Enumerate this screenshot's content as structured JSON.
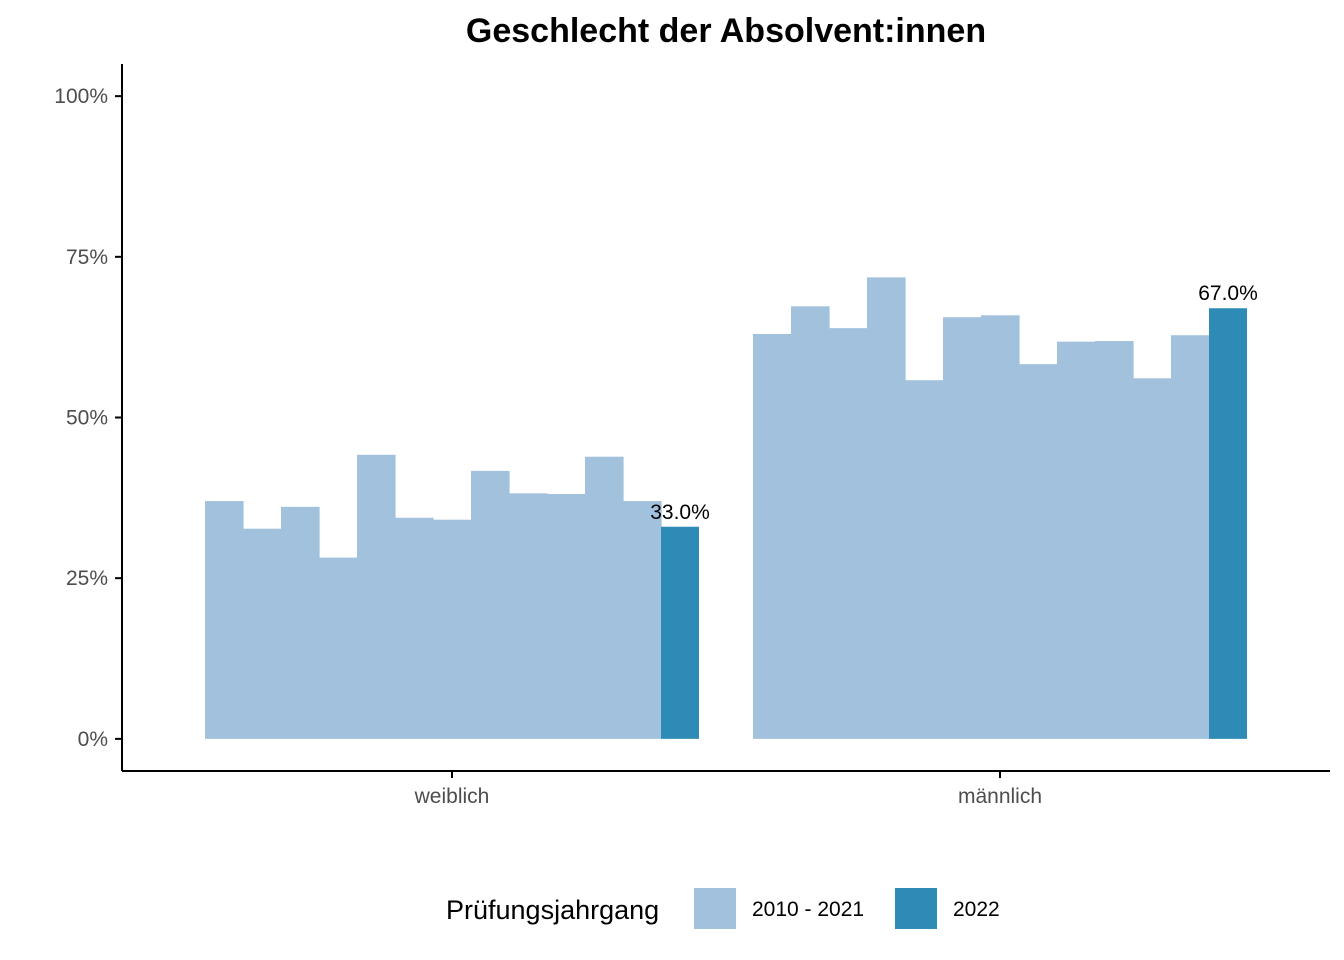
{
  "chart_data": {
    "type": "bar",
    "title": "Geschlecht der Absolvent:innen",
    "xlabel": "",
    "ylabel": "",
    "ylim": [
      -0.05,
      1.05
    ],
    "yticks": [
      0,
      0.25,
      0.5,
      0.75,
      1.0
    ],
    "ytick_labels": [
      "0%",
      "25%",
      "50%",
      "75%",
      "100%"
    ],
    "categories": [
      "weiblich",
      "männlich"
    ],
    "series_note": "12 Jahrgänge 2010 - 2021 plus 2022 pro Kategorie",
    "groups": [
      {
        "category": "weiblich",
        "values_2010_2021": [
          0.37,
          0.327,
          0.361,
          0.282,
          0.442,
          0.344,
          0.341,
          0.417,
          0.382,
          0.381,
          0.439,
          0.37
        ],
        "value_2022": 0.33,
        "label_2022": "33.0%"
      },
      {
        "category": "männlich",
        "values_2010_2021": [
          0.63,
          0.673,
          0.639,
          0.718,
          0.558,
          0.656,
          0.659,
          0.583,
          0.618,
          0.619,
          0.561,
          0.628
        ],
        "value_2022": 0.67,
        "label_2022": "67.0%"
      }
    ],
    "legend": {
      "title": "Prüfungsjahrgang",
      "position": "bottom",
      "entries": [
        {
          "label": "2010 - 2021",
          "color": "#a1c1dd"
        },
        {
          "label": "2022",
          "color": "#2e8bb5"
        }
      ]
    },
    "colors": {
      "historic": "#a1c1dd",
      "current": "#2e8bb5",
      "axis": "#000000",
      "tick_text": "#4d4d4d"
    }
  }
}
